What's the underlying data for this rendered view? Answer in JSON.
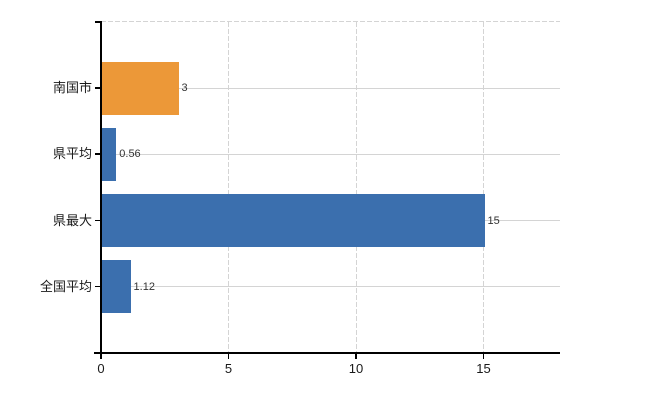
{
  "chart_data": {
    "type": "bar",
    "orientation": "horizontal",
    "title": "",
    "categories": [
      "南国市",
      "県平均",
      "県最大",
      "全国平均"
    ],
    "values": [
      3,
      0.56,
      15,
      1.12
    ],
    "value_labels": [
      "3",
      "0.56",
      "15",
      "1.12"
    ],
    "series_colors": [
      "#ec9838",
      "#3b6fae",
      "#3b6fae",
      "#3b6fae"
    ],
    "x_ticks": [
      0,
      5,
      10,
      15
    ],
    "x_tick_labels": [
      "0",
      "5",
      "10",
      "15"
    ],
    "xlim": [
      0,
      18
    ],
    "grid": true,
    "gridline_vertical_style": "dashed",
    "gridline_horizontal_style": "solid",
    "legend": "none"
  },
  "colors": {
    "bar_blue": "#3b6fae",
    "bar_orange": "#ec9838",
    "gridline": "#d4d4d4",
    "axis": "#000000",
    "category_label": "#1a1a1a",
    "value_label": "#333333",
    "background": "#ffffff"
  }
}
